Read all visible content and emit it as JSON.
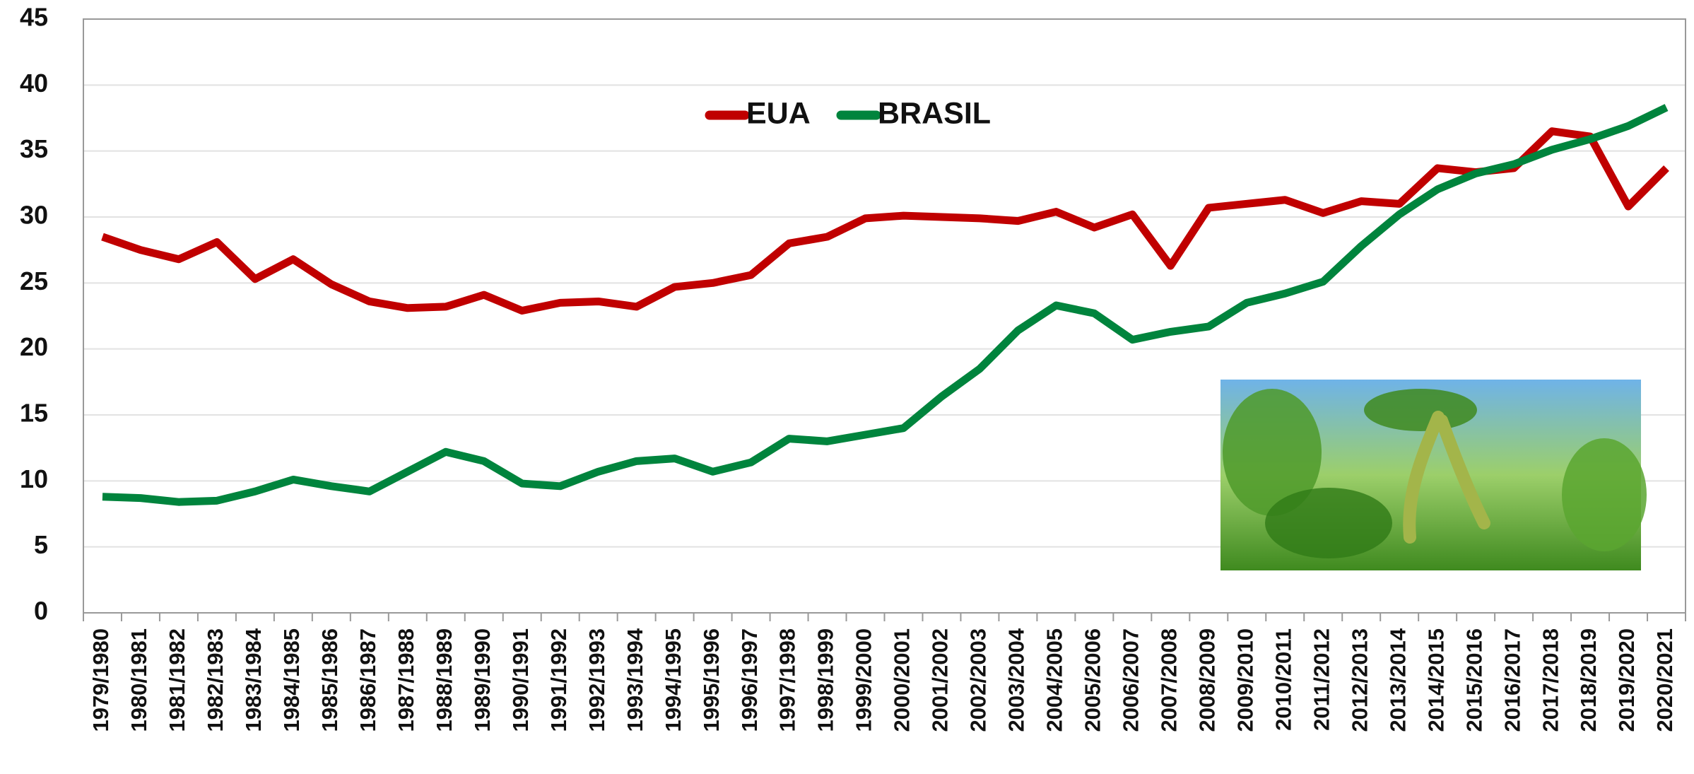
{
  "chart_data": {
    "type": "line",
    "categories": [
      "1979/1980",
      "1980/1981",
      "1981/1982",
      "1982/1983",
      "1983/1984",
      "1984/1985",
      "1985/1986",
      "1986/1987",
      "1987/1988",
      "1988/1989",
      "1989/1990",
      "1990/1991",
      "1991/1992",
      "1992/1993",
      "1993/1994",
      "1994/1995",
      "1995/1996",
      "1996/1997",
      "1997/1998",
      "1998/1999",
      "1999/2000",
      "2000/2001",
      "2001/2002",
      "2002/2003",
      "2003/2004",
      "2004/2005",
      "2005/2006",
      "2006/2007",
      "2007/2008",
      "2008/2009",
      "2009/2010",
      "2010/2011",
      "2011/2012",
      "2012/2013",
      "2013/2014",
      "2014/2015",
      "2015/2016",
      "2016/2017",
      "2017/2018",
      "2018/2019",
      "2019/2020",
      "2020/2021"
    ],
    "series": [
      {
        "name": "EUA",
        "color": "#c00000",
        "values": [
          28.5,
          27.5,
          26.8,
          28.1,
          25.3,
          26.8,
          24.9,
          23.6,
          23.1,
          23.2,
          24.1,
          22.9,
          23.5,
          23.6,
          23.2,
          24.7,
          25.0,
          25.6,
          28.0,
          28.5,
          29.9,
          30.1,
          30.0,
          29.9,
          29.7,
          30.4,
          29.2,
          30.2,
          26.3,
          30.7,
          31.0,
          31.3,
          30.3,
          31.2,
          31.0,
          33.7,
          33.4,
          33.7,
          36.5,
          36.1,
          30.8,
          33.7
        ]
      },
      {
        "name": "BRASIL",
        "color": "#00843d",
        "values": [
          8.8,
          8.7,
          8.4,
          8.5,
          9.2,
          10.1,
          9.6,
          9.2,
          10.7,
          12.2,
          11.5,
          9.8,
          9.6,
          10.7,
          11.5,
          11.7,
          10.7,
          11.4,
          13.2,
          13.0,
          13.5,
          14.0,
          16.4,
          18.5,
          21.4,
          23.3,
          22.7,
          20.7,
          21.3,
          21.7,
          23.5,
          24.2,
          25.1,
          27.8,
          30.2,
          32.1,
          33.3,
          34.0,
          35.1,
          35.9,
          36.9,
          38.3
        ]
      }
    ],
    "ylim": [
      0,
      45
    ],
    "yticks": [
      0,
      5,
      10,
      15,
      20,
      25,
      30,
      35,
      40,
      45
    ],
    "grid": true,
    "legend": "top"
  }
}
